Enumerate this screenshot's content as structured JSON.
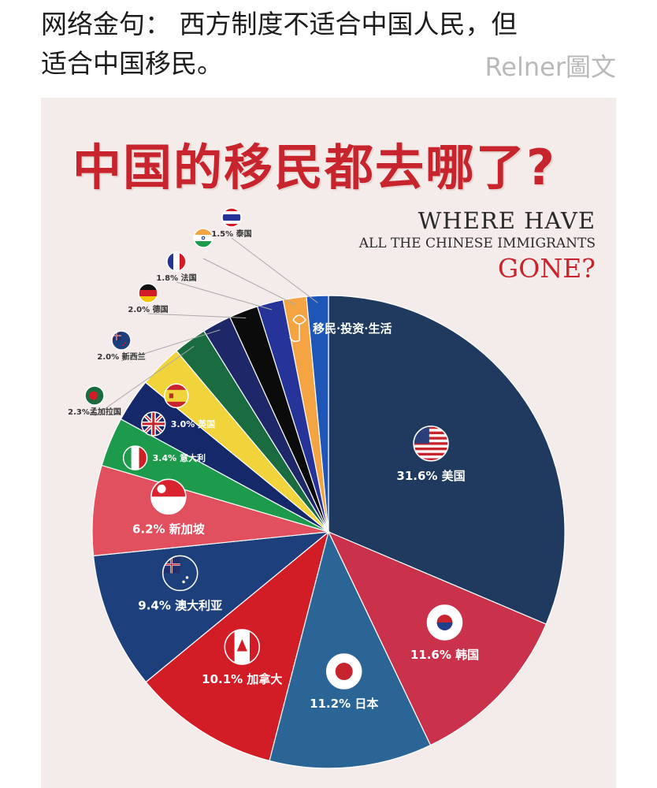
{
  "post": {
    "caption_line1": "网络金句：  西方制度不适合中国人民，但",
    "caption_line2": "适合中国移民。",
    "watermark": "Relner圖文"
  },
  "poster": {
    "title_cn": "中国的移民都去哪了?",
    "title_en_line1": "WHERE HAVE",
    "title_en_line2": "ALL THE CHINESE IMMIGRANTS",
    "title_en_line3": "GONE?",
    "logo_text": "移民·投资·生活"
  },
  "chart_data": {
    "type": "pie",
    "title": "中国的移民都去哪了?",
    "slices": [
      {
        "label": "美国",
        "value": 31.6,
        "display": "31.6% 美国",
        "color": "#1f3a5e",
        "icon": "usa-flag-icon"
      },
      {
        "label": "韩国",
        "value": 11.6,
        "display": "11.6% 韩国",
        "color": "#c9324a",
        "icon": "korea-flag-icon"
      },
      {
        "label": "日本",
        "value": 11.2,
        "display": "11.2% 日本",
        "color": "#2a6596",
        "icon": "japan-flag-icon"
      },
      {
        "label": "加拿大",
        "value": 10.1,
        "display": "10.1% 加拿大",
        "color": "#d21d27",
        "icon": "canada-flag-icon"
      },
      {
        "label": "澳大利亚",
        "value": 9.4,
        "display": "9.4% 澳大利亚",
        "color": "#1d3f7c",
        "icon": "australia-flag-icon"
      },
      {
        "label": "新加坡",
        "value": 6.2,
        "display": "6.2% 新加坡",
        "color": "#e0505f",
        "icon": "singapore-flag-icon"
      },
      {
        "label": "意大利",
        "value": 3.4,
        "display": "3.4% 意大利",
        "color": "#1e9a4c",
        "icon": "italy-flag-icon"
      },
      {
        "label": "英国",
        "value": 3.0,
        "display": "3.0% 英国",
        "color": "#15296a",
        "icon": "uk-flag-icon"
      },
      {
        "label": "西班牙",
        "value": 3.0,
        "display": "",
        "color": "#f1d33c",
        "icon": "spain-flag-icon"
      },
      {
        "label": "孟加拉国",
        "value": 2.3,
        "display": "2.3%孟加拉国",
        "color": "#1a6b40",
        "icon": "bangladesh-flag-icon"
      },
      {
        "label": "新西兰",
        "value": 2.0,
        "display": "2.0% 新西兰",
        "color": "#1e2768",
        "icon": "new-zealand-flag-icon"
      },
      {
        "label": "德国",
        "value": 2.0,
        "display": "2.0% 德国",
        "color": "#0b0b0b",
        "icon": "germany-flag-icon"
      },
      {
        "label": "法国",
        "value": 1.8,
        "display": "1.8% 法国",
        "color": "#26349a",
        "icon": "france-flag-icon"
      },
      {
        "label": "印度",
        "value": 1.6,
        "display": "",
        "color": "#f4a443",
        "icon": "india-flag-icon"
      },
      {
        "label": "泰国",
        "value": 1.5,
        "display": "1.5% 泰国",
        "color": "#1e56b8",
        "icon": "thailand-flag-icon"
      }
    ]
  }
}
